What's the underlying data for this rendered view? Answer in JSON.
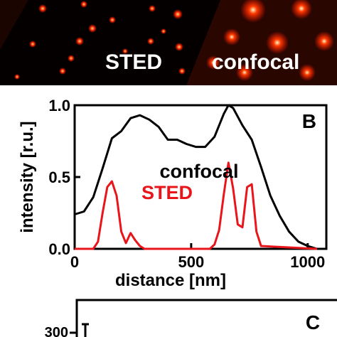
{
  "micrograph": {
    "labels": [
      "STED",
      "confocal"
    ],
    "colors": {
      "spot": "#ff2a00",
      "background": "#050000"
    }
  },
  "chart_data": {
    "type": "line",
    "panel_label": "B",
    "xlabel": "distance [nm]",
    "ylabel": "intensity [r.u.]",
    "xlim": [
      0,
      1080
    ],
    "ylim": [
      0,
      1.0
    ],
    "xticks": [
      0,
      500,
      1000
    ],
    "yticks": [
      0.0,
      0.5,
      1.0
    ],
    "ytick_labels": [
      "0.0",
      "0.5",
      "1.0"
    ],
    "grid": false,
    "legend_position": "center",
    "series": [
      {
        "name": "confocal",
        "color": "#000000",
        "x": [
          0,
          40,
          80,
          120,
          160,
          200,
          240,
          280,
          320,
          360,
          400,
          440,
          480,
          520,
          560,
          600,
          640,
          660,
          680,
          720,
          760,
          800,
          840,
          880,
          920,
          960,
          1000,
          1040
        ],
        "y": [
          0.24,
          0.26,
          0.36,
          0.56,
          0.77,
          0.82,
          0.91,
          0.93,
          0.9,
          0.85,
          0.76,
          0.76,
          0.73,
          0.71,
          0.71,
          0.78,
          0.94,
          1.0,
          0.98,
          0.86,
          0.76,
          0.57,
          0.37,
          0.23,
          0.12,
          0.05,
          0.02,
          0.0
        ]
      },
      {
        "name": "STED",
        "color": "#e8161b",
        "x": [
          0,
          80,
          100,
          120,
          140,
          160,
          180,
          200,
          220,
          240,
          260,
          280,
          300,
          340,
          400,
          500,
          580,
          600,
          620,
          640,
          660,
          680,
          700,
          720,
          740,
          760,
          780,
          800,
          1040
        ],
        "y": [
          0.0,
          0.0,
          0.05,
          0.25,
          0.43,
          0.47,
          0.37,
          0.12,
          0.04,
          0.11,
          0.06,
          0.02,
          0.0,
          0.0,
          0.0,
          0.0,
          0.0,
          0.03,
          0.13,
          0.38,
          0.6,
          0.42,
          0.17,
          0.15,
          0.43,
          0.45,
          0.12,
          0.02,
          0.0
        ]
      }
    ]
  },
  "panel_c": {
    "label": "C",
    "ytick_label": "300"
  }
}
